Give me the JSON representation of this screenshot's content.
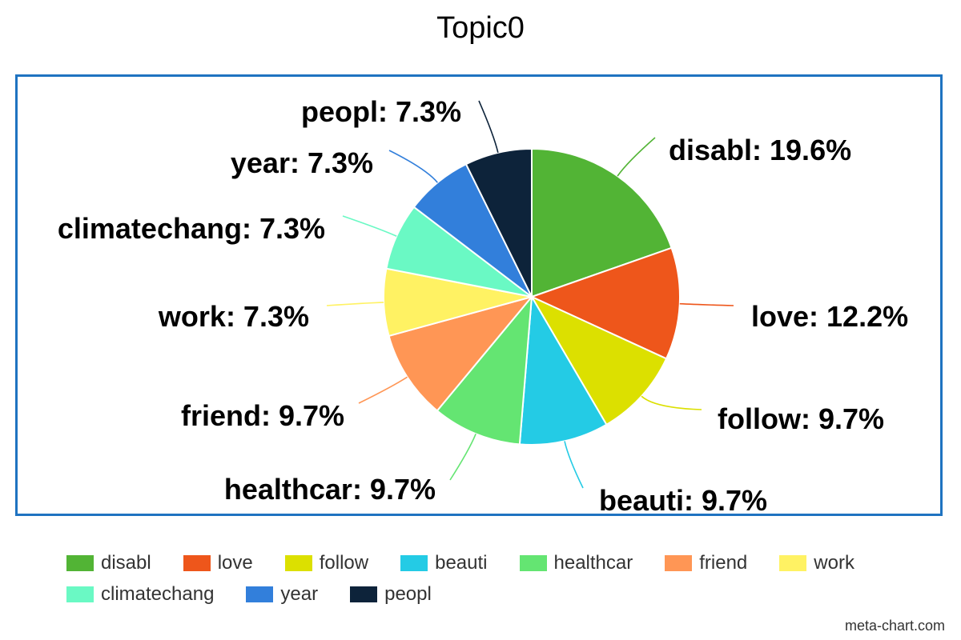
{
  "chart_data": {
    "type": "pie",
    "title": "Topic0",
    "slices": [
      {
        "name": "disabl",
        "value": 19.6,
        "label": "disabl: 19.6%",
        "color": "#52b435"
      },
      {
        "name": "love",
        "value": 12.2,
        "label": "love: 12.2%",
        "color": "#ee561b"
      },
      {
        "name": "follow",
        "value": 9.7,
        "label": "follow: 9.7%",
        "color": "#dce000"
      },
      {
        "name": "beauti",
        "value": 9.7,
        "label": "beauti: 9.7%",
        "color": "#24cbe5"
      },
      {
        "name": "healthcar",
        "value": 9.7,
        "label": "healthcar: 9.7%",
        "color": "#64e572"
      },
      {
        "name": "friend",
        "value": 9.7,
        "label": "friend: 9.7%",
        "color": "#ff9655"
      },
      {
        "name": "work",
        "value": 7.3,
        "label": "work: 7.3%",
        "color": "#fff263"
      },
      {
        "name": "climatechang",
        "value": 7.3,
        "label": "climatechang: 7.3%",
        "color": "#6af9c4"
      },
      {
        "name": "year",
        "value": 7.3,
        "label": "year: 7.3%",
        "color": "#327fdb"
      },
      {
        "name": "peopl",
        "value": 7.3,
        "label": "peopl: 7.3%",
        "color": "#0d233a"
      }
    ],
    "legend_position": "bottom",
    "frame_color": "#1f73c1"
  },
  "legend": {
    "rows": [
      [
        "disabl",
        "love",
        "follow",
        "beauti",
        "healthcar",
        "friend",
        "work"
      ],
      [
        "climatechang",
        "year",
        "peopl"
      ]
    ]
  },
  "watermark": "meta-chart.com"
}
